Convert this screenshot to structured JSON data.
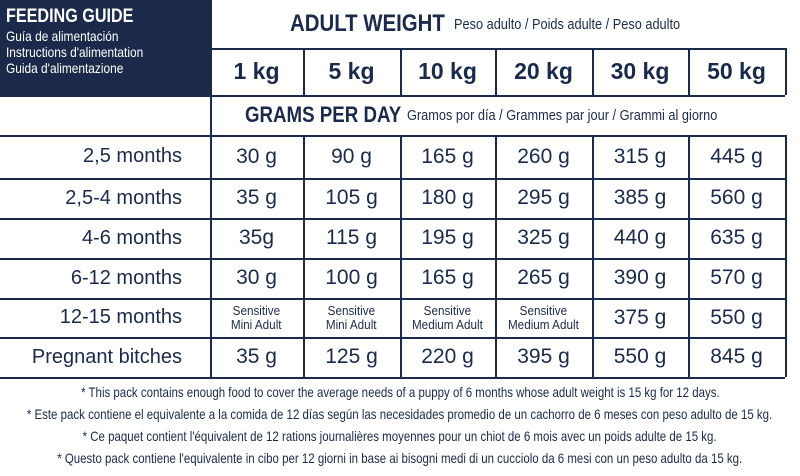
{
  "header": {
    "title": "FEEDING GUIDE",
    "subtitles": [
      "Guía de alimentación",
      "Instructions d'alimentation",
      "Guida d'alimentazione"
    ]
  },
  "adult_weight": {
    "title": "ADULT WEIGHT",
    "translations": "Peso adulto / Poids adulte / Peso adulto"
  },
  "weights": [
    "1 kg",
    "5 kg",
    "10 kg",
    "20 kg",
    "30 kg",
    "50 kg"
  ],
  "grams_per_day": {
    "title": "GRAMS PER DAY",
    "translations": "Gramos por día / Grammes par jour / Grammi al giorno"
  },
  "rows": [
    {
      "label": "2,5 months",
      "cells": [
        "30 g",
        "90 g",
        "165 g",
        "260 g",
        "315 g",
        "445 g"
      ]
    },
    {
      "label": "2,5-4 months",
      "cells": [
        "35 g",
        "105 g",
        "180 g",
        "295 g",
        "385 g",
        "560 g"
      ]
    },
    {
      "label": "4-6 months",
      "cells": [
        "35g",
        "115 g",
        "195 g",
        "325 g",
        "440 g",
        "635 g"
      ]
    },
    {
      "label": "6-12 months",
      "cells": [
        "30 g",
        "100 g",
        "165 g",
        "265 g",
        "390 g",
        "570 g"
      ]
    },
    {
      "label": "12-15 months",
      "cells": [
        [
          "Sensitive",
          "Mini Adult"
        ],
        [
          "Sensitive",
          "Mini Adult"
        ],
        [
          "Sensitive",
          "Medium Adult"
        ],
        [
          "Sensitive",
          "Medium Adult"
        ],
        "375 g",
        "550 g"
      ]
    },
    {
      "label": "Pregnant bitches",
      "cells": [
        "35 g",
        "125 g",
        "220 g",
        "395 g",
        "550 g",
        "845 g"
      ]
    }
  ],
  "notes": [
    "* This pack contains enough food to cover the average needs of a puppy of 6 months whose adult weight is 15 kg for 12 days.",
    "* Este pack contiene el equivalente a la comida de 12 días según las necesidades promedio de un cachorro de 6 meses con peso adulto de 15 kg.",
    "* Ce paquet contient l'équivalent de 12 rations journalières moyennes pour un chiot de 6 mois avec un poids adulte de 15 kg.",
    "* Questo pack contiene l'equivalente in cibo per 12 giorni in base ai bisogni medi di un cucciolo da 6 mesi con un peso adulto da 15 kg."
  ]
}
